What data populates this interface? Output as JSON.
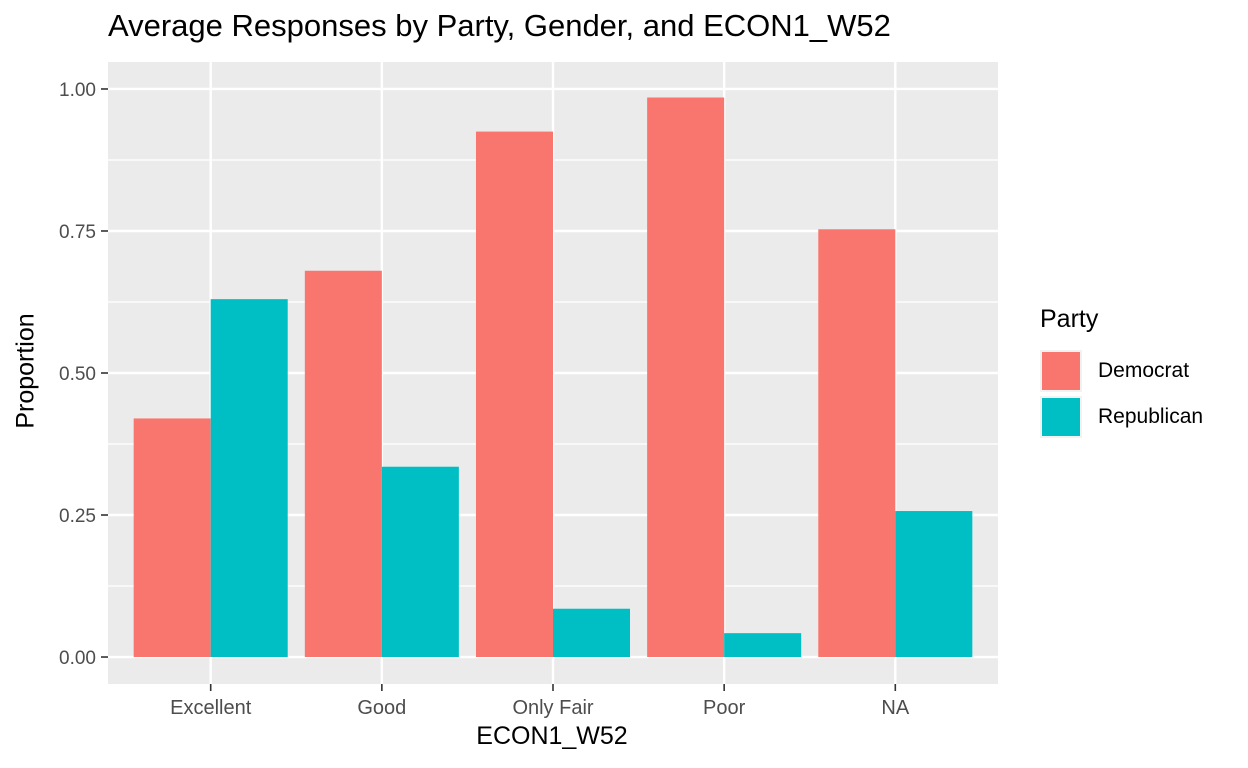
{
  "chart_data": {
    "type": "bar",
    "title": "Average Responses by Party, Gender, and ECON1_W52",
    "xlabel": "ECON1_W52",
    "ylabel": "Proportion",
    "categories": [
      "Excellent",
      "Good",
      "Only Fair",
      "Poor",
      "NA"
    ],
    "series": [
      {
        "name": "Democrat",
        "color": "#F8766D",
        "values": [
          0.42,
          0.68,
          0.925,
          0.985,
          0.753
        ]
      },
      {
        "name": "Republican",
        "color": "#00BFC4",
        "values": [
          0.63,
          0.335,
          0.085,
          0.042,
          0.257
        ]
      }
    ],
    "ylim": [
      -0.0475,
      1.0475
    ],
    "yticks": [
      0,
      0.25,
      0.5,
      0.75,
      1.0
    ],
    "ytick_labels": [
      "0.00",
      "0.25",
      "0.50",
      "0.75",
      "1.00"
    ],
    "grid": true,
    "panel_background": "#EBEBEB",
    "legend": {
      "title": "Party",
      "placement": "right"
    }
  }
}
